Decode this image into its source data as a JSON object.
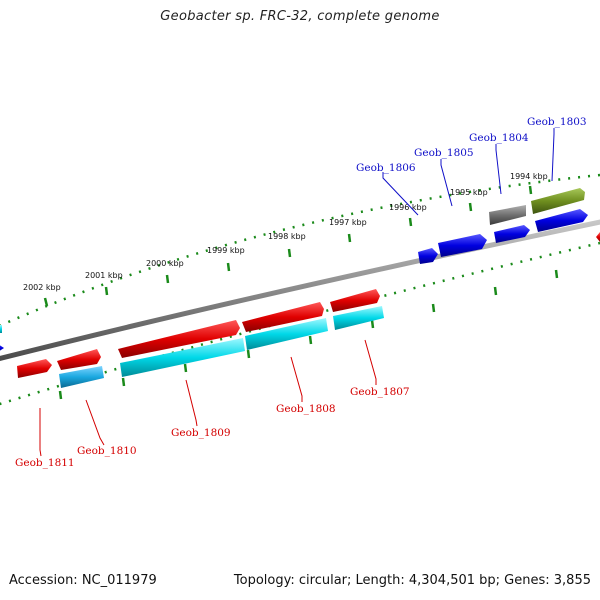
{
  "title": "Geobacter sp. FRC-32, complete genome",
  "footer": {
    "accession": "Accession: NC_011979",
    "summary": "Topology: circular; Length: 4,304,501 bp; Genes: 3,855"
  },
  "kbp_labels": [
    "2002 kbp",
    "2001 kbp",
    "2000 kbp",
    "1999 kbp",
    "1998 kbp",
    "1997 kbp",
    "1996 kbp",
    "1995 kbp",
    "1994 kbp"
  ],
  "genes_top": [
    {
      "label": "Geob_1806",
      "color": "#1010c8"
    },
    {
      "label": "Geob_1805",
      "color": "#1010c8"
    },
    {
      "label": "Geob_1804",
      "color": "#1010c8"
    },
    {
      "label": "Geob_1803",
      "color": "#1010c8"
    }
  ],
  "genes_bottom": [
    {
      "label": "Geob_1811",
      "color": "#d40000"
    },
    {
      "label": "Geob_1810",
      "color": "#d40000"
    },
    {
      "label": "Geob_1809",
      "color": "#d40000"
    },
    {
      "label": "Geob_1808",
      "color": "#d40000"
    },
    {
      "label": "Geob_1807",
      "color": "#d40000"
    }
  ],
  "colors": {
    "forward_gene": "#e00000",
    "reverse_gene_top": "#0000e0",
    "cyan_feature": "#00d8e8",
    "light_blue_feature": "#1aa8e0",
    "olive_feature": "#6f8f1f",
    "gray_feature": "#707070",
    "backbone": "#808080",
    "tick": "#1a8a1a"
  }
}
